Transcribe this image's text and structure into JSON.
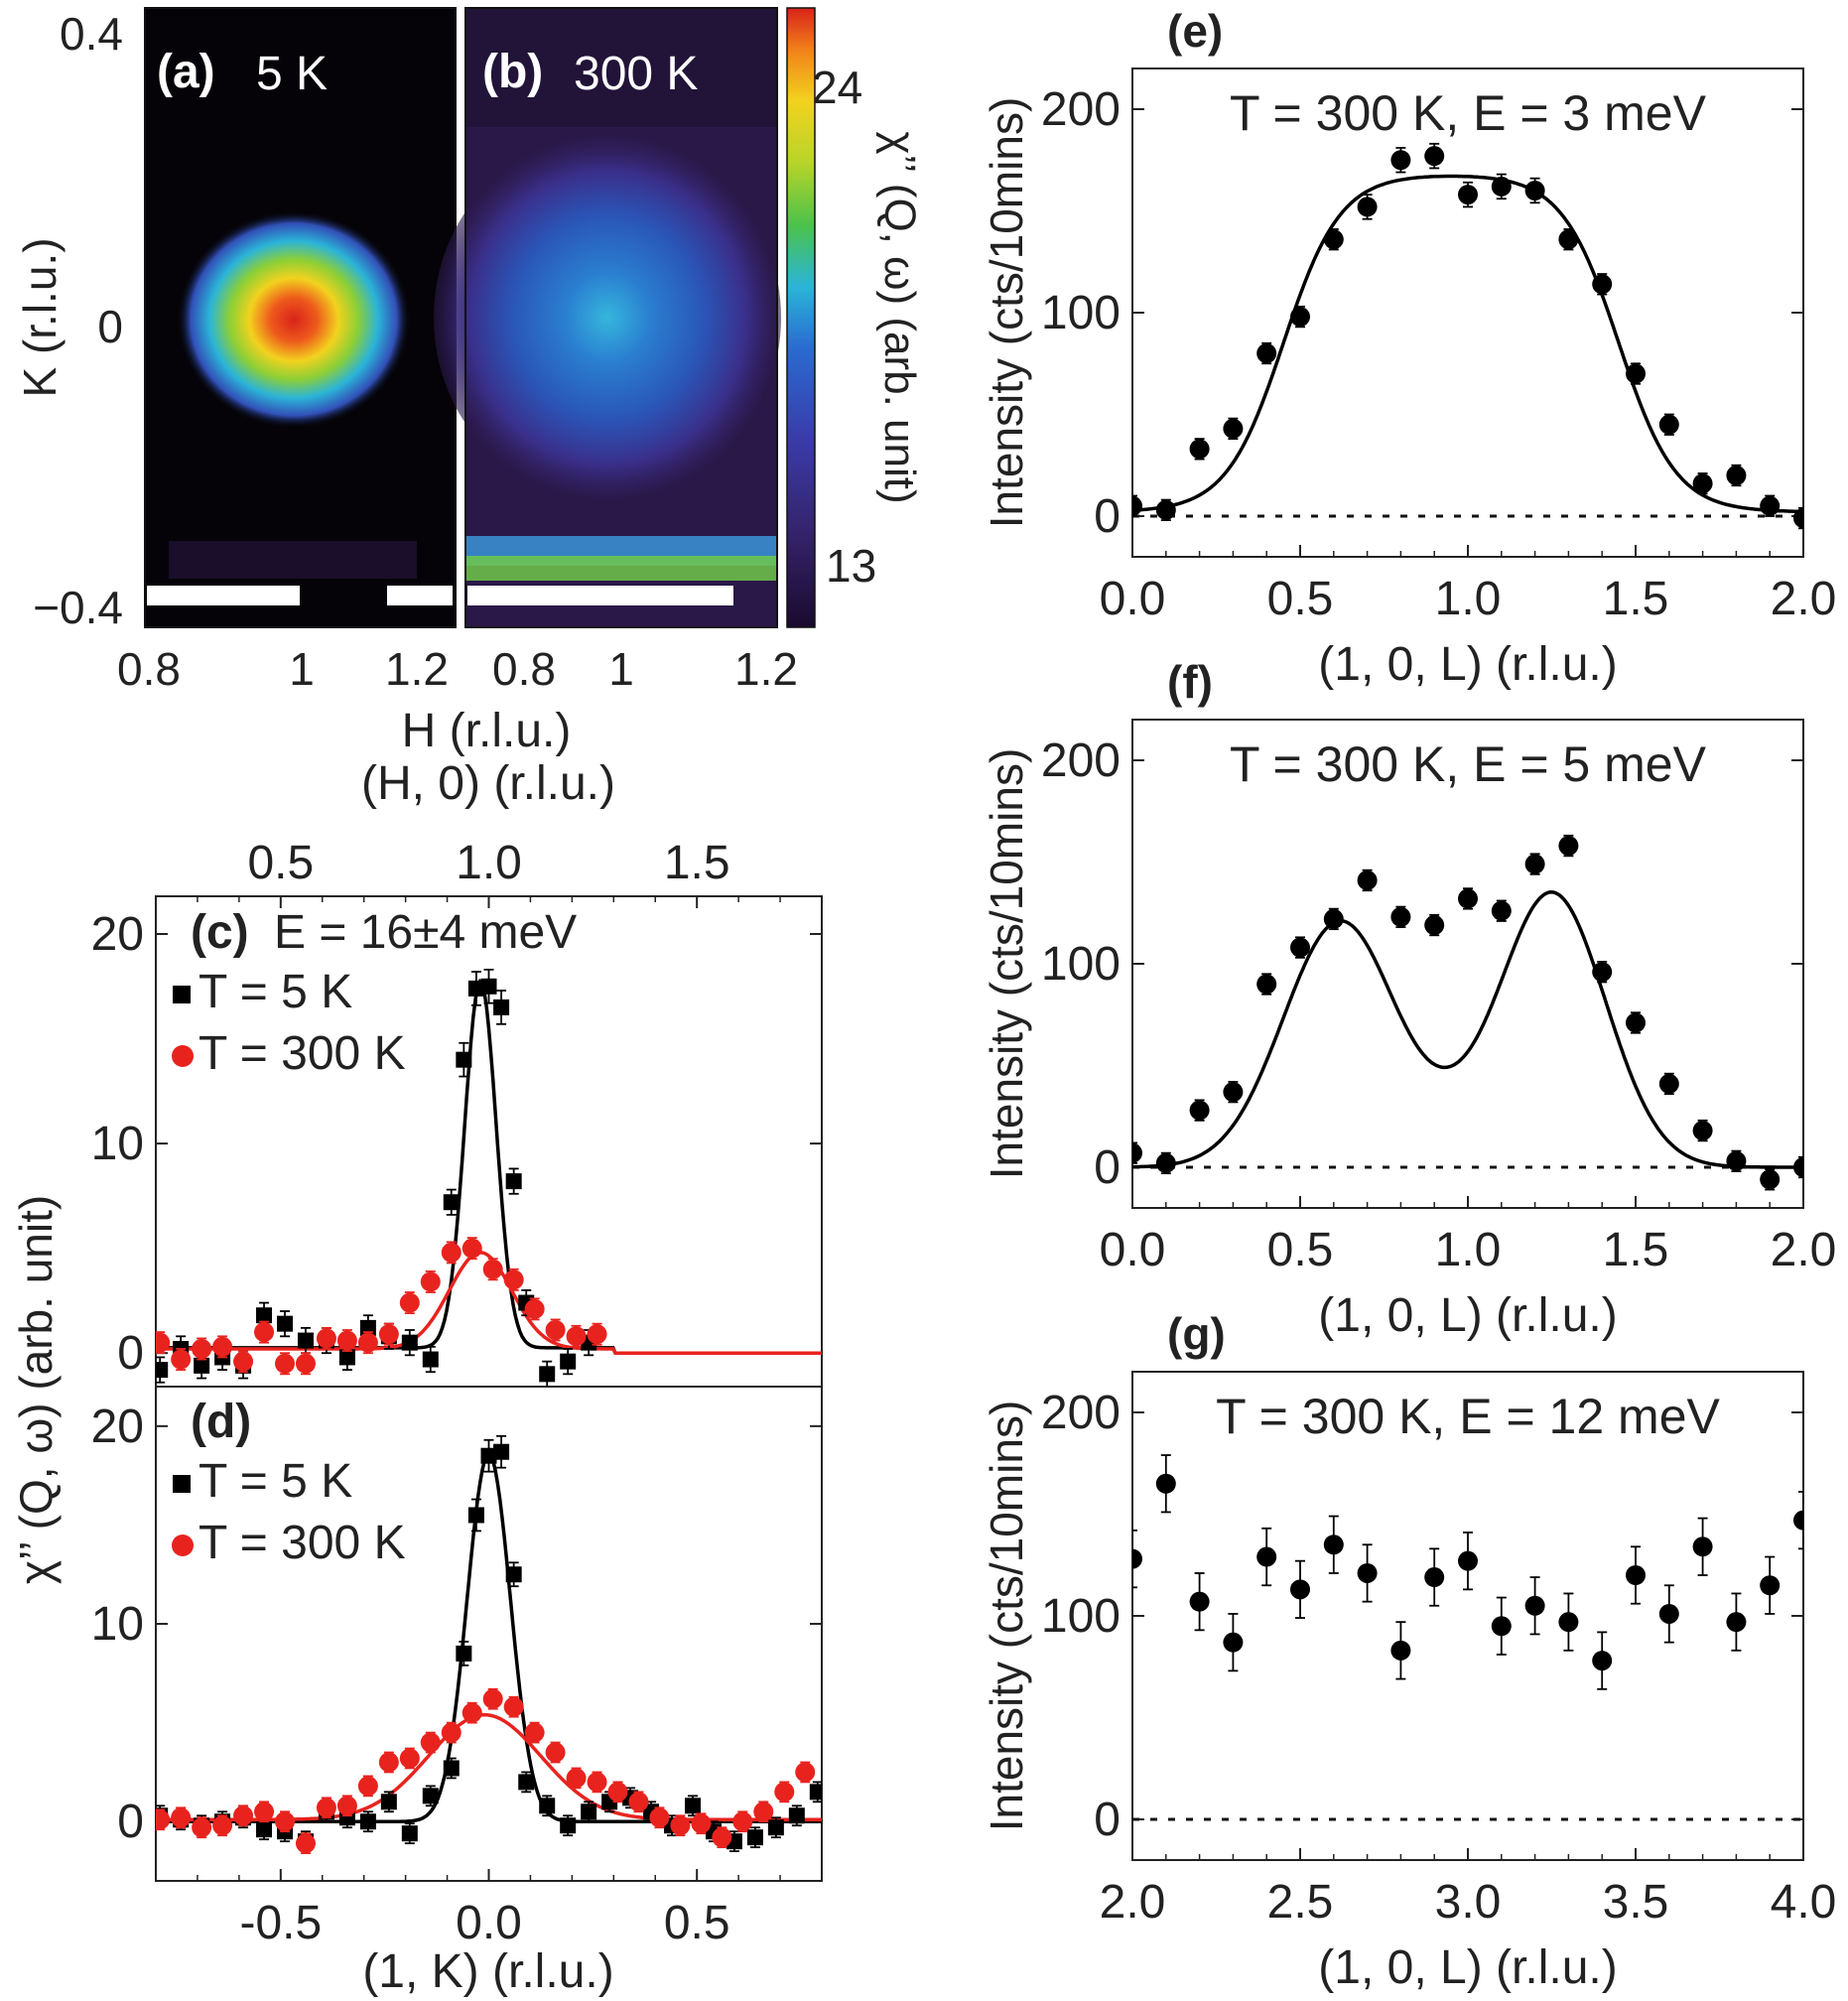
{
  "panels_ab": {
    "a": {
      "label": "(a)",
      "temp": "5 K"
    },
    "b": {
      "label": "(b)",
      "temp": "300 K"
    },
    "ylabel": "K (r.l.u.)",
    "xlabel": "H (r.l.u.)",
    "yticks": [
      "0.4",
      "0",
      "−0.4"
    ],
    "xticks_a": [
      "0.8",
      "1",
      "1.2"
    ],
    "xticks_b": [
      "0.8",
      "1",
      "1.2"
    ],
    "colorbar": {
      "label": "χ’’ (Q, ω) (arb. unit)",
      "max_label": "24",
      "min_label": "13"
    }
  },
  "chart_data": [
    {
      "type": "heatmap",
      "panel": "(a)",
      "title": "5 K",
      "xlabel": "H (r.l.u.)",
      "ylabel": "K (r.l.u.)",
      "xlim": [
        0.8,
        1.2
      ],
      "ylim": [
        -0.4,
        0.4
      ],
      "xticks": [
        "0.8",
        "1",
        "1.2"
      ],
      "yticks": [
        "0.4",
        "0",
        "−0.4"
      ],
      "peak_center": [
        1.0,
        0.0
      ],
      "peak_value": 24,
      "background_value": 13,
      "colorbar_range": [
        13,
        24
      ]
    },
    {
      "type": "heatmap",
      "panel": "(b)",
      "title": "300 K",
      "xlabel": "H (r.l.u.)",
      "ylabel": "K (r.l.u.)",
      "xlim": [
        0.8,
        1.2
      ],
      "ylim": [
        -0.4,
        0.4
      ],
      "xticks": [
        "0.8",
        "1",
        "1.2"
      ],
      "yticks": [
        "0.4",
        "0",
        "−0.4"
      ],
      "peak_center": [
        1.0,
        0.0
      ],
      "peak_value": 18,
      "background_value": 14,
      "colorbar_range": [
        13,
        24
      ]
    },
    {
      "type": "scatter",
      "panel": "(c)",
      "title": "E = 16±4 meV",
      "xlabel_top": "(H, 0) (r.l.u.)",
      "xticks_top": [
        "0.5",
        "1.0",
        "1.5"
      ],
      "ylabel": "χ’’ (Q, ω) (arb. unit)",
      "xlim_top": [
        0.2,
        1.8
      ],
      "ylim": [
        -2,
        22
      ],
      "yticks": [
        "0",
        "10",
        "20"
      ],
      "series": [
        {
          "name": "T = 5 K",
          "color": "#000000",
          "marker": "square",
          "x": [
            0.21,
            0.26,
            0.31,
            0.36,
            0.41,
            0.46,
            0.51,
            0.56,
            0.61,
            0.66,
            0.71,
            0.76,
            0.81,
            0.86,
            0.91,
            0.94,
            0.97,
            1.0,
            1.03,
            1.06,
            1.09,
            1.14,
            1.19,
            1.24
          ],
          "y": [
            -0.8,
            0.2,
            -0.6,
            -0.2,
            -0.6,
            1.8,
            1.4,
            0.6,
            0.6,
            -0.2,
            1.2,
            0.8,
            0.5,
            -0.3,
            7.2,
            14,
            17.4,
            17.5,
            16.5,
            8.2,
            2.4,
            -1.0,
            -0.4,
            0.5
          ],
          "err": [
            0.6,
            0.6,
            0.6,
            0.6,
            0.6,
            0.6,
            0.6,
            0.6,
            0.6,
            0.6,
            0.6,
            0.6,
            0.6,
            0.6,
            0.6,
            0.8,
            0.8,
            0.8,
            0.8,
            0.6,
            0.6,
            0.6,
            0.6,
            0.6
          ]
        },
        {
          "name": "T = 300 K",
          "color": "#e8231e",
          "marker": "circle",
          "x": [
            0.21,
            0.26,
            0.31,
            0.36,
            0.41,
            0.46,
            0.51,
            0.56,
            0.61,
            0.66,
            0.71,
            0.76,
            0.81,
            0.86,
            0.91,
            0.96,
            1.01,
            1.06,
            1.11,
            1.16,
            1.21,
            1.26
          ],
          "y": [
            0.5,
            -0.3,
            0.2,
            0.3,
            -0.4,
            1.0,
            -0.5,
            -0.5,
            0.7,
            0.6,
            0.5,
            0.9,
            2.4,
            3.4,
            4.8,
            5.0,
            4.0,
            3.5,
            2.1,
            1.1,
            0.8,
            0.9
          ],
          "err": [
            0.5,
            0.5,
            0.5,
            0.5,
            0.5,
            0.5,
            0.5,
            0.5,
            0.5,
            0.5,
            0.5,
            0.5,
            0.5,
            0.5,
            0.5,
            0.5,
            0.5,
            0.5,
            0.5,
            0.5,
            0.5,
            0.5
          ]
        }
      ],
      "legend": "top-left"
    },
    {
      "type": "scatter",
      "panel": "(d)",
      "xlabel": "(1, K) (r.l.u.)",
      "ylabel": "χ’’ (Q, ω) (arb. unit)",
      "xlim": [
        -0.8,
        0.8
      ],
      "ylim": [
        -3,
        22
      ],
      "xticks": [
        "-0.5",
        "0.0",
        "0.5"
      ],
      "yticks": [
        "0",
        "10",
        "20"
      ],
      "series": [
        {
          "name": "T = 5 K",
          "color": "#000000",
          "marker": "square",
          "x": [
            -0.79,
            -0.74,
            -0.69,
            -0.64,
            -0.59,
            -0.54,
            -0.49,
            -0.44,
            -0.39,
            -0.34,
            -0.29,
            -0.24,
            -0.19,
            -0.14,
            -0.09,
            -0.06,
            -0.03,
            0.0,
            0.03,
            0.06,
            0.09,
            0.14,
            0.19,
            0.24,
            0.29,
            0.34,
            0.39,
            0.44,
            0.49,
            0.54,
            0.59,
            0.64,
            0.69,
            0.74,
            0.79
          ],
          "y": [
            0.3,
            0.1,
            -0.2,
            0.0,
            0.2,
            -0.4,
            -0.5,
            -1.0,
            0.5,
            0.2,
            0.0,
            1.0,
            -0.6,
            1.3,
            2.7,
            8.5,
            15.5,
            18.5,
            18.7,
            12.5,
            2.0,
            0.8,
            -0.2,
            0.5,
            1.0,
            1.2,
            0.5,
            -0.2,
            0.8,
            -0.5,
            -1.0,
            -0.8,
            -0.3,
            0.3,
            1.5
          ],
          "err": [
            0.5,
            0.5,
            0.5,
            0.5,
            0.5,
            0.5,
            0.5,
            0.5,
            0.5,
            0.5,
            0.5,
            0.5,
            0.5,
            0.5,
            0.5,
            0.6,
            0.8,
            0.8,
            0.8,
            0.6,
            0.5,
            0.5,
            0.5,
            0.5,
            0.5,
            0.5,
            0.5,
            0.5,
            0.5,
            0.5,
            0.5,
            0.5,
            0.5,
            0.5,
            0.5
          ]
        },
        {
          "name": "T = 300 K",
          "color": "#e8231e",
          "marker": "circle",
          "x": [
            -0.79,
            -0.74,
            -0.69,
            -0.64,
            -0.59,
            -0.54,
            -0.49,
            -0.44,
            -0.39,
            -0.34,
            -0.29,
            -0.24,
            -0.19,
            -0.14,
            -0.09,
            -0.04,
            0.01,
            0.06,
            0.11,
            0.16,
            0.21,
            0.26,
            0.31,
            0.36,
            0.41,
            0.46,
            0.51,
            0.56,
            0.61,
            0.66,
            0.71,
            0.76
          ],
          "y": [
            0.1,
            0.2,
            -0.3,
            -0.2,
            0.3,
            0.5,
            0.0,
            -1.1,
            0.7,
            0.8,
            1.8,
            3.0,
            3.2,
            4.0,
            4.5,
            5.5,
            6.2,
            5.8,
            4.5,
            3.5,
            2.2,
            2.0,
            1.5,
            1.0,
            0.2,
            -0.2,
            -0.1,
            -0.8,
            0.0,
            0.5,
            1.5,
            2.5
          ],
          "err": [
            0.5,
            0.5,
            0.5,
            0.5,
            0.5,
            0.5,
            0.5,
            0.5,
            0.5,
            0.5,
            0.5,
            0.5,
            0.5,
            0.5,
            0.5,
            0.5,
            0.5,
            0.5,
            0.5,
            0.5,
            0.5,
            0.5,
            0.5,
            0.5,
            0.5,
            0.5,
            0.5,
            0.5,
            0.5,
            0.5,
            0.5,
            0.5
          ]
        }
      ],
      "legend": "top-left"
    },
    {
      "type": "scatter",
      "panel": "(e)",
      "title": "T = 300 K, E = 3 meV",
      "xlabel": "(1, 0, L) (r.l.u.)",
      "ylabel": "Intensity (cts/10mins)",
      "xlim": [
        0.0,
        2.0
      ],
      "ylim": [
        -20,
        220
      ],
      "xticks": [
        "0.0",
        "0.5",
        "1.0",
        "1.5",
        "2.0"
      ],
      "yticks": [
        "0",
        "100",
        "200"
      ],
      "series": [
        {
          "color": "#000000",
          "marker": "circle",
          "x": [
            0.0,
            0.1,
            0.2,
            0.3,
            0.4,
            0.5,
            0.6,
            0.7,
            0.8,
            0.9,
            1.0,
            1.1,
            1.2,
            1.3,
            1.4,
            1.5,
            1.6,
            1.7,
            1.8,
            1.9,
            2.0
          ],
          "y": [
            5,
            3,
            33,
            43,
            80,
            98,
            136,
            152,
            175,
            177,
            158,
            162,
            160,
            136,
            114,
            70,
            45,
            16,
            20,
            5,
            -1
          ],
          "err": [
            5,
            5,
            5,
            5,
            5,
            5,
            5,
            6,
            6,
            6,
            6,
            6,
            6,
            5,
            5,
            5,
            5,
            5,
            5,
            5,
            5
          ]
        }
      ]
    },
    {
      "type": "scatter",
      "panel": "(f)",
      "title": "T = 300 K, E = 5 meV",
      "xlabel": "(1, 0, L) (r.l.u.)",
      "ylabel": "Intensity (cts/10mins)",
      "xlim": [
        0.0,
        2.0
      ],
      "ylim": [
        -20,
        220
      ],
      "xticks": [
        "0.0",
        "0.5",
        "1.0",
        "1.5",
        "2.0"
      ],
      "yticks": [
        "0",
        "100",
        "200"
      ],
      "series": [
        {
          "color": "#000000",
          "marker": "circle",
          "x": [
            0.0,
            0.1,
            0.2,
            0.3,
            0.4,
            0.5,
            0.6,
            0.7,
            0.8,
            0.9,
            1.0,
            1.1,
            1.2,
            1.3,
            1.4,
            1.5,
            1.6,
            1.7,
            1.8,
            1.9,
            2.0
          ],
          "y": [
            7,
            2,
            28,
            37,
            90,
            108,
            122,
            141,
            123,
            119,
            132,
            126,
            149,
            158,
            96,
            71,
            41,
            18,
            3,
            -6,
            0
          ],
          "err": [
            5,
            5,
            5,
            5,
            5,
            5,
            5,
            5,
            5,
            5,
            5,
            5,
            5,
            5,
            5,
            5,
            5,
            5,
            5,
            5,
            5
          ]
        }
      ]
    },
    {
      "type": "scatter",
      "panel": "(g)",
      "title": "T = 300 K, E = 12 meV",
      "xlabel": "(1, 0, L) (r.l.u.)",
      "ylabel": "Intensity (cts/10mins)",
      "xlim": [
        2.0,
        4.0
      ],
      "ylim": [
        -20,
        220
      ],
      "xticks": [
        "2.0",
        "2.5",
        "3.0",
        "3.5",
        "4.0"
      ],
      "yticks": [
        "0",
        "100",
        "200"
      ],
      "series": [
        {
          "color": "#000000",
          "marker": "circle",
          "x": [
            2.0,
            2.1,
            2.2,
            2.3,
            2.4,
            2.5,
            2.6,
            2.7,
            2.8,
            2.9,
            3.0,
            3.1,
            3.2,
            3.3,
            3.4,
            3.5,
            3.6,
            3.7,
            3.8,
            3.9,
            4.0
          ],
          "y": [
            128,
            165,
            107,
            87,
            129,
            113,
            135,
            121,
            83,
            119,
            127,
            95,
            105,
            97,
            78,
            120,
            101,
            134,
            97,
            115,
            147
          ],
          "err": [
            14,
            14,
            14,
            14,
            14,
            14,
            14,
            14,
            14,
            14,
            14,
            14,
            14,
            14,
            14,
            14,
            14,
            14,
            14,
            14,
            14
          ]
        }
      ]
    }
  ]
}
